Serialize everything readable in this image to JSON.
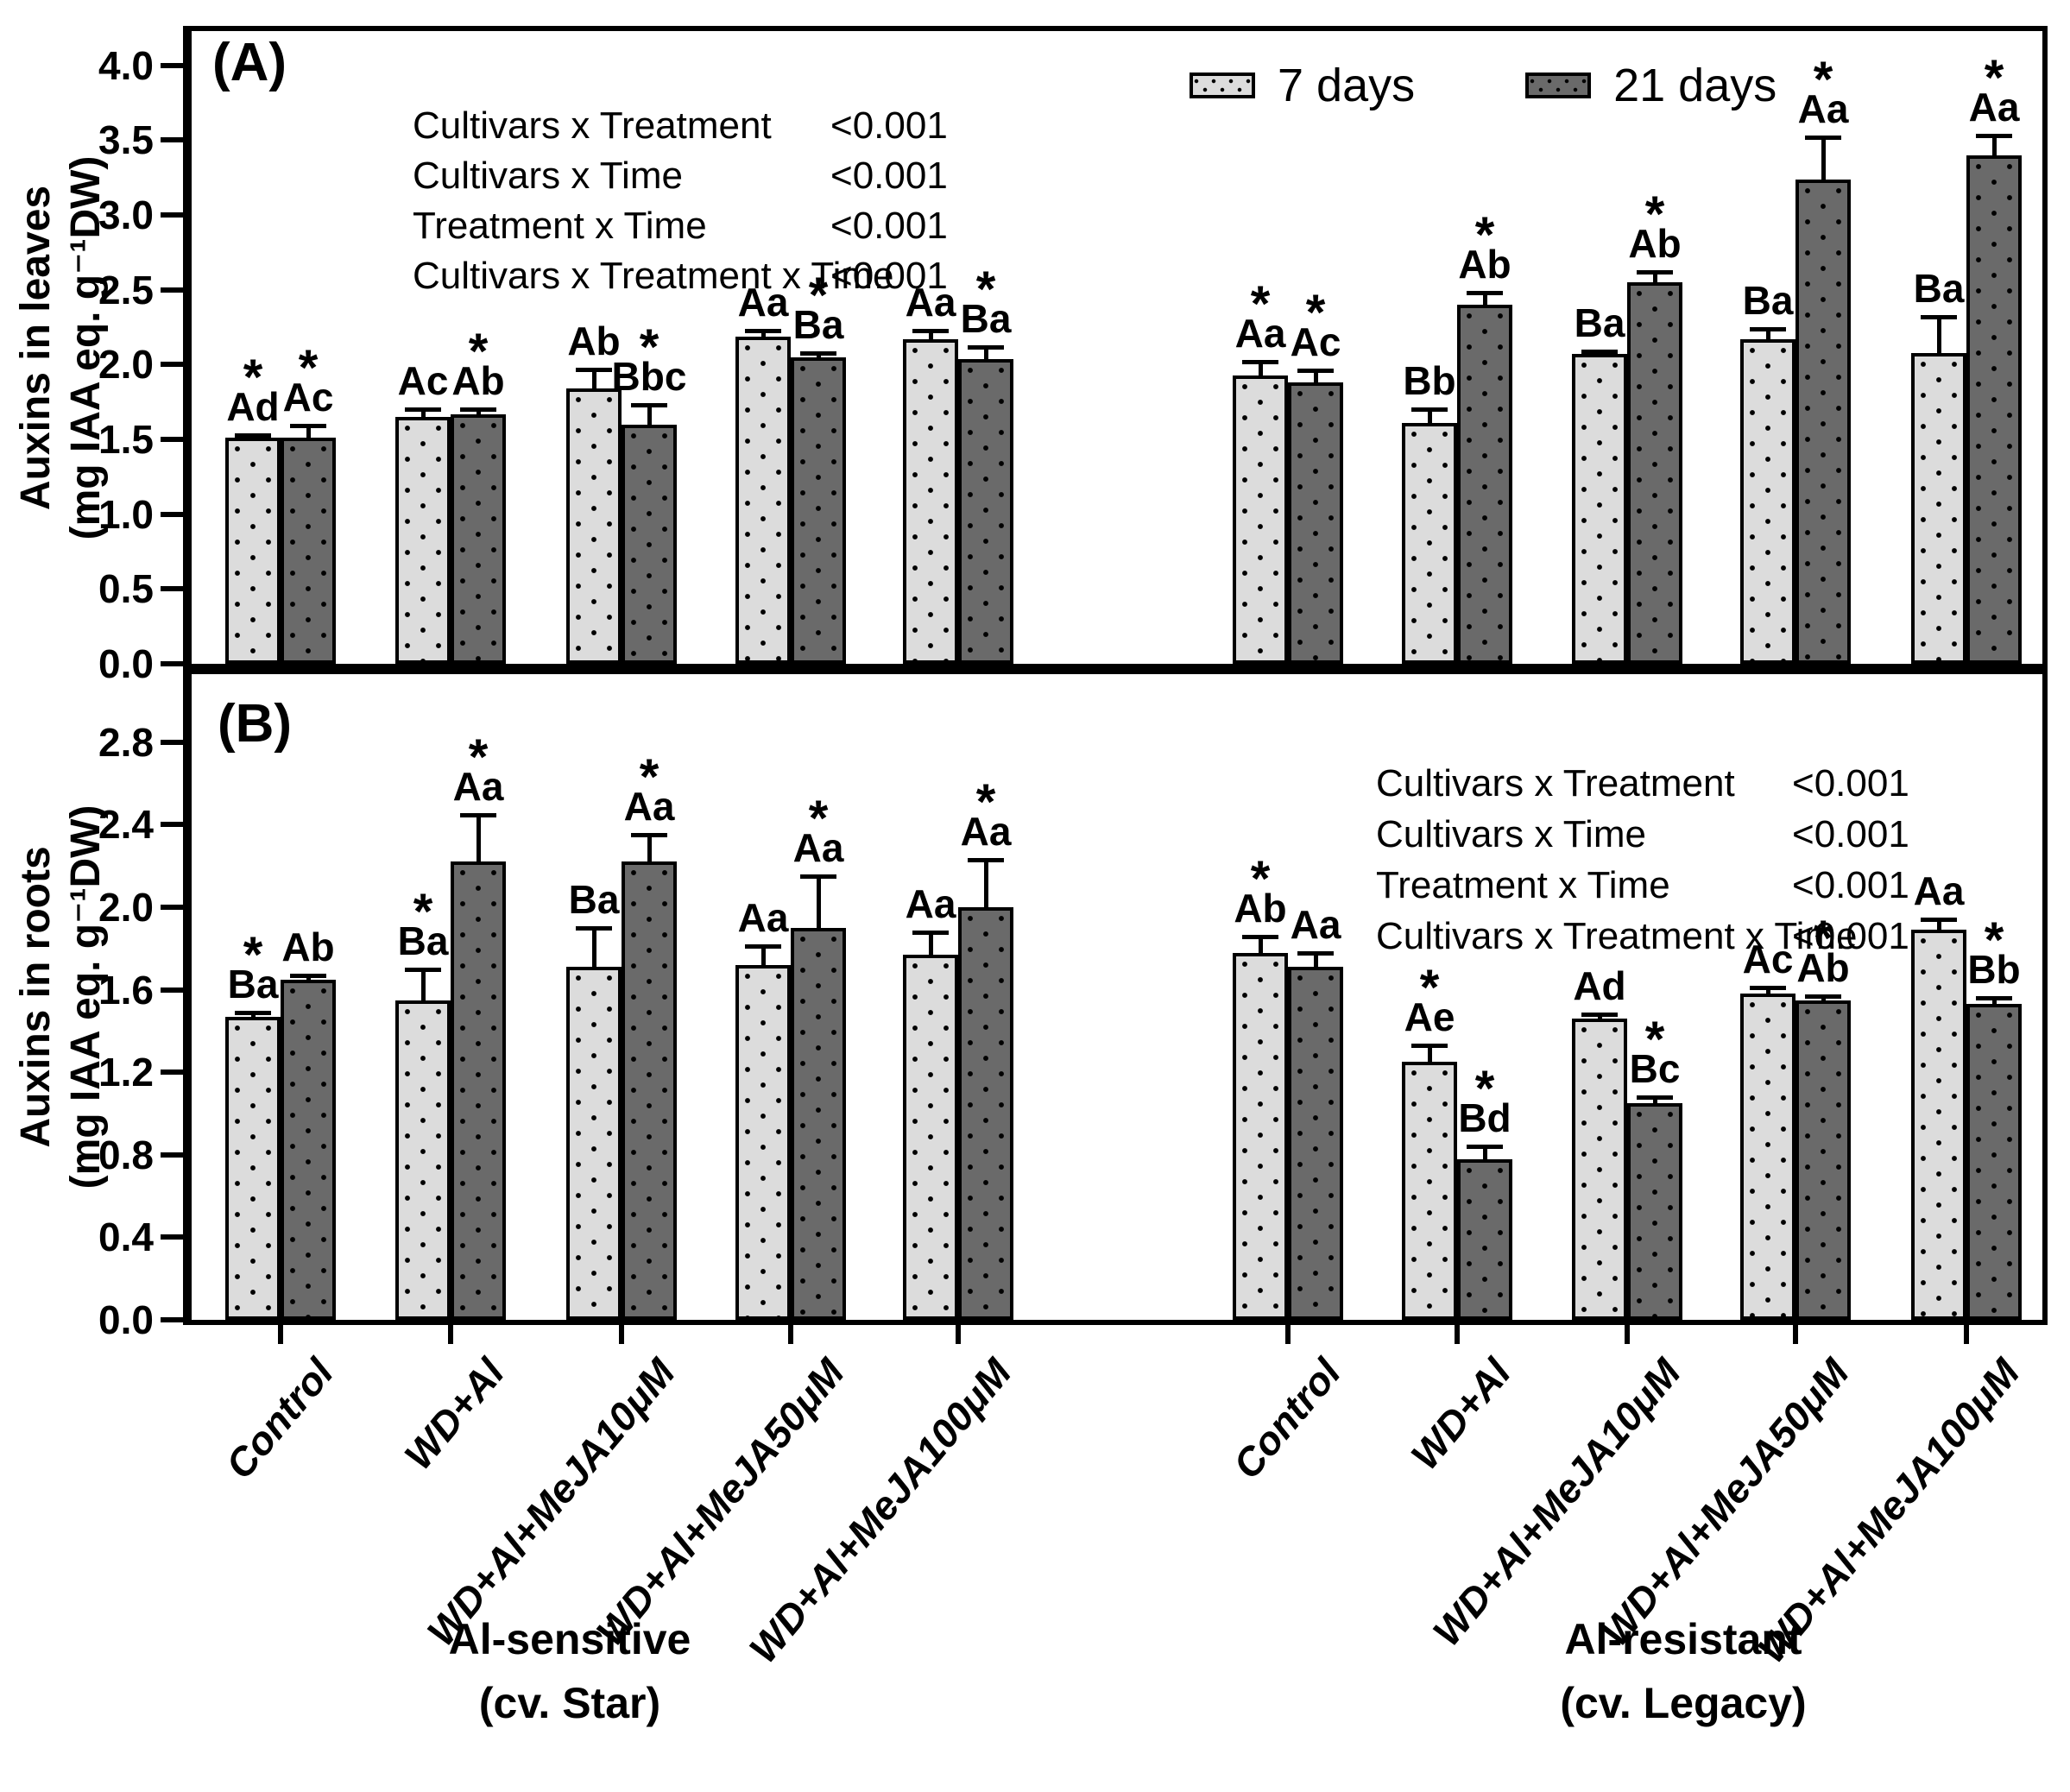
{
  "legend": {
    "items": [
      {
        "label": "7 days",
        "series": "light"
      },
      {
        "label": "21 days",
        "series": "dark"
      }
    ]
  },
  "colors": {
    "light_bar": "#dcdcdc",
    "dark_bar": "#6a6a6a",
    "dot": "#000000",
    "axis": "#000000",
    "background": "#ffffff"
  },
  "groups": [
    {
      "label": "Al-sensitive",
      "cultivar": "(cv. Star)"
    },
    {
      "label": "Al-resistant",
      "cultivar": "(cv. Legacy)"
    }
  ],
  "treatments": [
    "Control",
    "WD+Al",
    "WD+Al+MeJA10μM",
    "WD+Al+MeJA50μM",
    "WD+Al+MeJA100μM"
  ],
  "chart_data": [
    {
      "type": "bar",
      "panel_label": "(A)",
      "ylabel": "Auxins  in leaves",
      "ylabel_units": "(mg IAA eq. g⁻¹DW)",
      "yticks": [
        "0.0",
        "0.5",
        "1.0",
        "1.5",
        "2.0",
        "2.5",
        "3.0",
        "3.5",
        "4.0"
      ],
      "ylim": [
        0,
        4.23
      ],
      "grid": false,
      "legend_position": "top-right",
      "anova": [
        {
          "label": "Cultivars x Treatment",
          "value": "<0.001"
        },
        {
          "label": "Cultivars x Time",
          "value": "<0.001"
        },
        {
          "label": "Treatment x Time",
          "value": "<0.001"
        },
        {
          "label": "Cultivars x Treatment x Time",
          "value": "<0.001"
        }
      ],
      "groups": [
        "Al-sensitive (cv. Star)",
        "Al-resistant (cv. Legacy)"
      ],
      "categories": [
        "Control",
        "WD+Al",
        "WD+Al+MeJA10μM",
        "WD+Al+MeJA50μM",
        "WD+Al+MeJA100μM"
      ],
      "series": [
        {
          "name": "7 days",
          "group": 0,
          "values": [
            1.51,
            1.65,
            1.84,
            2.19,
            2.17
          ],
          "errors": [
            0.02,
            0.05,
            0.13,
            0.04,
            0.06
          ],
          "letters": [
            "Ad",
            "Ac",
            "Ab",
            "Aa",
            "Aa"
          ],
          "asterisks": [
            true,
            false,
            false,
            false,
            false
          ]
        },
        {
          "name": "21 days",
          "group": 0,
          "values": [
            1.51,
            1.67,
            1.6,
            2.05,
            2.04
          ],
          "errors": [
            0.08,
            0.03,
            0.13,
            0.03,
            0.08
          ],
          "letters": [
            "Ac",
            "Ab",
            "Bbc",
            "Ba",
            "Ba"
          ],
          "asterisks": [
            true,
            true,
            true,
            true,
            true
          ]
        },
        {
          "name": "7 days",
          "group": 1,
          "values": [
            1.93,
            1.61,
            2.07,
            2.17,
            2.08
          ],
          "errors": [
            0.09,
            0.09,
            0.02,
            0.07,
            0.24
          ],
          "letters": [
            "Aa",
            "Bb",
            "Ba",
            "Ba",
            "Ba"
          ],
          "asterisks": [
            true,
            false,
            false,
            false,
            false
          ]
        },
        {
          "name": "21 days",
          "group": 1,
          "values": [
            1.88,
            2.4,
            2.55,
            3.24,
            3.4
          ],
          "errors": [
            0.08,
            0.08,
            0.07,
            0.28,
            0.13
          ],
          "letters": [
            "Ac",
            "Ab",
            "Ab",
            "Aa",
            "Aa"
          ],
          "asterisks": [
            true,
            true,
            true,
            true,
            true
          ]
        }
      ]
    },
    {
      "type": "bar",
      "panel_label": "(B)",
      "ylabel": "Auxins in roots",
      "ylabel_units": "(mg IAA eq. g⁻¹DW)",
      "yticks": [
        "0.0",
        "0.4",
        "0.8",
        "1.2",
        "1.6",
        "2.0",
        "2.4",
        "2.8"
      ],
      "ylim": [
        0,
        3.13
      ],
      "grid": false,
      "legend_position": "none",
      "anova": [
        {
          "label": "Cultivars x Treatment",
          "value": "<0.001"
        },
        {
          "label": "Cultivars x Time",
          "value": "<0.001"
        },
        {
          "label": "Treatment x Time",
          "value": "<0.001"
        },
        {
          "label": "Cultivars x Treatment x Time",
          "value": "<0.001"
        }
      ],
      "groups": [
        "Al-sensitive (cv. Star)",
        "Al-resistant (cv. Legacy)"
      ],
      "categories": [
        "Control",
        "WD+Al",
        "WD+Al+MeJA10μM",
        "WD+Al+MeJA50μM",
        "WD+Al+MeJA100μM"
      ],
      "series": [
        {
          "name": "7 days",
          "group": 0,
          "values": [
            1.47,
            1.55,
            1.71,
            1.72,
            1.77
          ],
          "errors": [
            0.02,
            0.15,
            0.19,
            0.09,
            0.11
          ],
          "letters": [
            "Ba",
            "Ba",
            "Ba",
            "Aa",
            "Aa"
          ],
          "asterisks": [
            true,
            true,
            false,
            false,
            false
          ]
        },
        {
          "name": "21 days",
          "group": 0,
          "values": [
            1.65,
            2.22,
            2.22,
            1.9,
            2.0
          ],
          "errors": [
            0.02,
            0.23,
            0.13,
            0.25,
            0.23
          ],
          "letters": [
            "Ab",
            "Aa",
            "Aa",
            "Aa",
            "Aa"
          ],
          "asterisks": [
            false,
            true,
            true,
            true,
            true
          ]
        },
        {
          "name": "7 days",
          "group": 1,
          "values": [
            1.78,
            1.25,
            1.46,
            1.58,
            1.89
          ],
          "errors": [
            0.08,
            0.08,
            0.02,
            0.03,
            0.05
          ],
          "letters": [
            "Ab",
            "Ae",
            "Ad",
            "Ac",
            "Aa"
          ],
          "asterisks": [
            true,
            true,
            false,
            false,
            false
          ]
        },
        {
          "name": "21 days",
          "group": 1,
          "values": [
            1.71,
            0.78,
            1.05,
            1.55,
            1.53
          ],
          "errors": [
            0.07,
            0.06,
            0.03,
            0.02,
            0.03
          ],
          "letters": [
            "Aa",
            "Bd",
            "Bc",
            "Ab",
            "Bb"
          ],
          "asterisks": [
            false,
            true,
            true,
            true,
            true
          ]
        }
      ]
    }
  ]
}
